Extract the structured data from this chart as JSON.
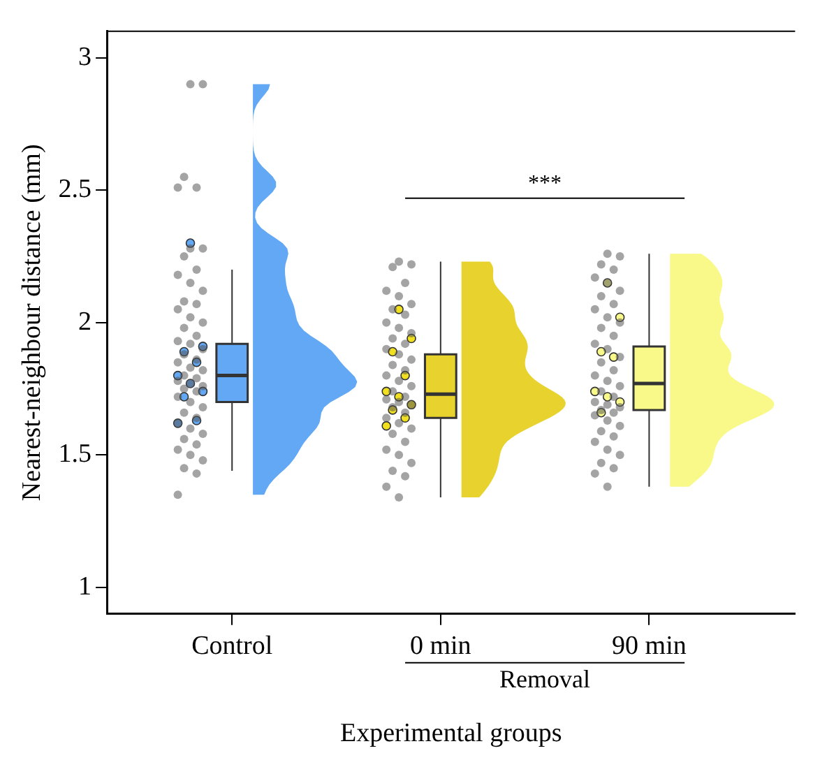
{
  "chart_data": {
    "type": "box",
    "categories": [
      "Control",
      "0 min",
      "90 min"
    ],
    "xlabel": "Experimental groups",
    "ylabel": "Nearest-neighbour distance (mm)",
    "ylim": [
      0.9,
      3.1
    ],
    "yticks": [
      1,
      1.5,
      2,
      2.5,
      3
    ],
    "grid": false,
    "legend": false,
    "annotations": [
      "***",
      "Removal"
    ],
    "series": [
      {
        "type": "box",
        "colors": [
          "#62a8f4",
          "#e8d22e",
          "#f9f98a"
        ],
        "boxes": [
          {
            "low": 1.44,
            "q1": 1.7,
            "median": 1.8,
            "q3": 1.92,
            "high": 2.2
          },
          {
            "low": 1.34,
            "q1": 1.64,
            "median": 1.73,
            "q3": 1.88,
            "high": 2.23
          },
          {
            "low": 1.38,
            "q1": 1.67,
            "median": 1.77,
            "q3": 1.91,
            "high": 2.26
          }
        ]
      },
      {
        "type": "scatter",
        "color": "#555555",
        "x": [
          "Control",
          "Control",
          "Control",
          "Control",
          "Control",
          "Control",
          "Control",
          "Control",
          "Control",
          "Control",
          "Control",
          "Control",
          "Control",
          "Control",
          "Control",
          "Control",
          "Control",
          "Control",
          "Control",
          "Control",
          "Control",
          "Control",
          "Control",
          "Control",
          "Control",
          "Control",
          "Control",
          "Control",
          "Control",
          "Control",
          "Control",
          "Control",
          "Control",
          "Control",
          "Control",
          "Control",
          "Control",
          "Control",
          "Control",
          "Control",
          "Control",
          "Control",
          "Control",
          "Control",
          "Control",
          "Control",
          "Control",
          "Control",
          "Control",
          "Control",
          "0 min",
          "0 min",
          "0 min",
          "0 min",
          "0 min",
          "0 min",
          "0 min",
          "0 min",
          "0 min",
          "0 min",
          "0 min",
          "0 min",
          "0 min",
          "0 min",
          "0 min",
          "0 min",
          "0 min",
          "0 min",
          "0 min",
          "0 min",
          "0 min",
          "0 min",
          "0 min",
          "0 min",
          "0 min",
          "0 min",
          "0 min",
          "0 min",
          "0 min",
          "0 min",
          "0 min",
          "0 min",
          "0 min",
          "0 min",
          "0 min",
          "0 min",
          "0 min",
          "0 min",
          "0 min",
          "0 min",
          "0 min",
          "90 min",
          "90 min",
          "90 min",
          "90 min",
          "90 min",
          "90 min",
          "90 min",
          "90 min",
          "90 min",
          "90 min",
          "90 min",
          "90 min",
          "90 min",
          "90 min",
          "90 min",
          "90 min",
          "90 min",
          "90 min",
          "90 min",
          "90 min",
          "90 min",
          "90 min",
          "90 min",
          "90 min",
          "90 min",
          "90 min",
          "90 min",
          "90 min",
          "90 min",
          "90 min",
          "90 min",
          "90 min",
          "90 min",
          "90 min",
          "90 min",
          "90 min",
          "90 min",
          "90 min",
          "90 min",
          "90 min",
          "90 min"
        ],
        "values": [
          2.9,
          2.9,
          2.55,
          2.51,
          2.51,
          2.28,
          2.28,
          2.25,
          2.2,
          2.18,
          2.15,
          2.12,
          2.08,
          2.07,
          2.05,
          2.02,
          2.0,
          1.98,
          1.95,
          1.93,
          1.92,
          1.9,
          1.88,
          1.86,
          1.85,
          1.83,
          1.82,
          1.8,
          1.79,
          1.78,
          1.77,
          1.76,
          1.75,
          1.74,
          1.72,
          1.7,
          1.68,
          1.66,
          1.64,
          1.62,
          1.6,
          1.58,
          1.56,
          1.54,
          1.52,
          1.5,
          1.48,
          1.45,
          1.43,
          1.35,
          2.23,
          2.22,
          2.21,
          2.15,
          2.12,
          2.1,
          2.07,
          2.05,
          2.03,
          2.0,
          1.98,
          1.96,
          1.94,
          1.92,
          1.9,
          1.88,
          1.86,
          1.84,
          1.82,
          1.8,
          1.78,
          1.76,
          1.74,
          1.72,
          1.71,
          1.7,
          1.69,
          1.68,
          1.66,
          1.64,
          1.62,
          1.6,
          1.58,
          1.55,
          1.52,
          1.5,
          1.47,
          1.44,
          1.42,
          1.38,
          1.34,
          2.26,
          2.25,
          2.22,
          2.2,
          2.17,
          2.15,
          2.12,
          2.1,
          2.07,
          2.05,
          2.02,
          2.0,
          1.98,
          1.95,
          1.92,
          1.9,
          1.87,
          1.85,
          1.82,
          1.8,
          1.78,
          1.76,
          1.74,
          1.72,
          1.7,
          1.69,
          1.68,
          1.67,
          1.66,
          1.65,
          1.63,
          1.61,
          1.59,
          1.57,
          1.55,
          1.52,
          1.5,
          1.47,
          1.45,
          1.43,
          1.38
        ]
      },
      {
        "type": "scatter",
        "colors": [
          "#62a8f4",
          "#62a8f4",
          "#62a8f4",
          "#62a8f4",
          "#62a8f4",
          "#62a8f4",
          "#62a8f4",
          "#62a8f4",
          "#62a8f4",
          "#62a8f4",
          "#f0e020",
          "#f0e020",
          "#f0e020",
          "#f0e020",
          "#f0e020",
          "#f0e020",
          "#f0e020",
          "#f0e020",
          "#f0e020",
          "#f0e020",
          "#f9f98a",
          "#f9f98a",
          "#f9f98a",
          "#f9f98a",
          "#f9f98a",
          "#f9f98a",
          "#f9f98a",
          "#f9f98a"
        ],
        "x": [
          "Control",
          "Control",
          "Control",
          "Control",
          "Control",
          "Control",
          "Control",
          "Control",
          "Control",
          "Control",
          "0 min",
          "0 min",
          "0 min",
          "0 min",
          "0 min",
          "0 min",
          "0 min",
          "0 min",
          "0 min",
          "0 min",
          "90 min",
          "90 min",
          "90 min",
          "90 min",
          "90 min",
          "90 min",
          "90 min",
          "90 min"
        ],
        "values": [
          2.3,
          1.91,
          1.89,
          1.85,
          1.8,
          1.77,
          1.74,
          1.72,
          1.63,
          1.62,
          2.05,
          1.94,
          1.89,
          1.8,
          1.74,
          1.72,
          1.69,
          1.67,
          1.64,
          1.61,
          2.15,
          2.02,
          1.89,
          1.87,
          1.74,
          1.72,
          1.7,
          1.66
        ]
      }
    ]
  }
}
